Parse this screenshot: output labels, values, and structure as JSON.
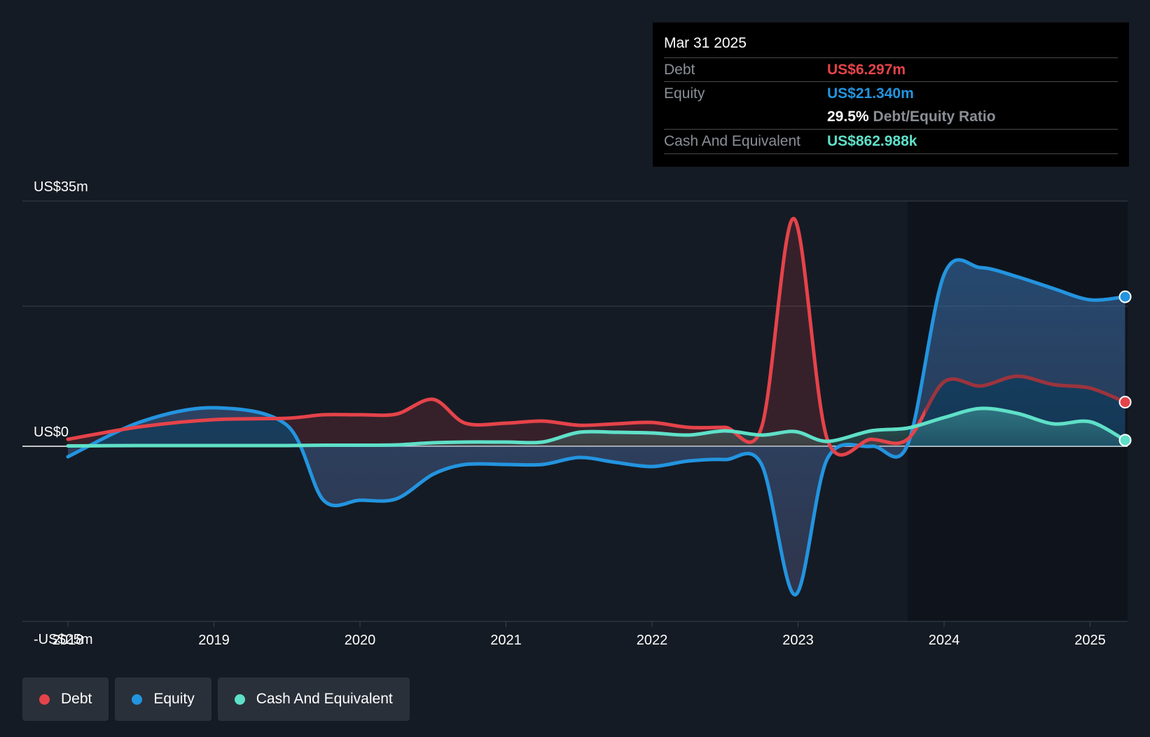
{
  "colors": {
    "debt": "#e5434a",
    "equity": "#2394df",
    "cash": "#5fe0c8",
    "background": "#151b24"
  },
  "tooltip": {
    "date": "Mar 31 2025",
    "rows": {
      "debt_label": "Debt",
      "debt_value": "US$6.297m",
      "equity_label": "Equity",
      "equity_value": "US$21.340m",
      "ratio_value": "29.5%",
      "ratio_label": "Debt/Equity Ratio",
      "cash_label": "Cash And Equivalent",
      "cash_value": "US$862.988k"
    }
  },
  "legend": {
    "items": [
      {
        "label": "Debt",
        "color": "#e5434a"
      },
      {
        "label": "Equity",
        "color": "#2394df"
      },
      {
        "label": "Cash And Equivalent",
        "color": "#5fe0c8"
      }
    ]
  },
  "chart_data": {
    "type": "line",
    "title": "",
    "xlabel": "",
    "ylabel": "",
    "xlim": [
      2017.7,
      2025.25
    ],
    "ylim": [
      -25,
      35
    ],
    "y_tick_labels": [
      {
        "value": 35,
        "label": "US$35m"
      },
      {
        "value": 0,
        "label": "US$0"
      },
      {
        "value": -25,
        "label": "-US$25m"
      }
    ],
    "gridlines": [
      35,
      20,
      0,
      -25
    ],
    "x_tick_labels": [
      {
        "value": 2018,
        "label": "2018"
      },
      {
        "value": 2019,
        "label": "2019"
      },
      {
        "value": 2020,
        "label": "2020"
      },
      {
        "value": 2021,
        "label": "2021"
      },
      {
        "value": 2022,
        "label": "2022"
      },
      {
        "value": 2023,
        "label": "2023"
      },
      {
        "value": 2024,
        "label": "2024"
      },
      {
        "value": 2025,
        "label": "2025"
      }
    ],
    "highlight_start": 2023.75,
    "series": [
      {
        "name": "Debt",
        "key": "debt",
        "x": [
          2018.0,
          2018.5,
          2019.0,
          2019.5,
          2019.75,
          2020.0,
          2020.25,
          2020.5,
          2020.72,
          2021.0,
          2021.25,
          2021.5,
          2021.75,
          2022.0,
          2022.25,
          2022.5,
          2022.75,
          2022.97,
          2023.2,
          2023.5,
          2023.75,
          2024.0,
          2024.25,
          2024.5,
          2024.75,
          2025.0,
          2025.24
        ],
        "y": [
          1.0,
          2.8,
          3.8,
          4.0,
          4.5,
          4.5,
          4.6,
          6.7,
          3.3,
          3.3,
          3.6,
          3.0,
          3.2,
          3.4,
          2.7,
          2.7,
          2.7,
          32.5,
          1.0,
          1.0,
          1.0,
          9.2,
          8.6,
          10.0,
          8.8,
          8.3,
          6.297
        ]
      },
      {
        "name": "Equity",
        "key": "equity",
        "x": [
          2018.0,
          2018.5,
          2019.0,
          2019.5,
          2019.75,
          2020.0,
          2020.25,
          2020.5,
          2020.72,
          2021.0,
          2021.25,
          2021.5,
          2021.75,
          2022.0,
          2022.25,
          2022.5,
          2022.75,
          2022.98,
          2023.2,
          2023.5,
          2023.75,
          2024.0,
          2024.25,
          2024.5,
          2024.75,
          2025.0,
          2025.24
        ],
        "y": [
          -1.5,
          3.5,
          5.5,
          3.0,
          -7.7,
          -7.7,
          -7.5,
          -4.0,
          -2.6,
          -2.6,
          -2.6,
          -1.6,
          -2.3,
          -2.9,
          -2.1,
          -1.9,
          -2.6,
          -21.2,
          -1.8,
          0.0,
          0.2,
          24.5,
          25.5,
          24.2,
          22.5,
          20.9,
          21.34
        ]
      },
      {
        "name": "Cash And Equivalent",
        "key": "cash",
        "x": [
          2018.0,
          2018.5,
          2019.0,
          2019.5,
          2019.75,
          2020.0,
          2020.25,
          2020.5,
          2020.72,
          2021.0,
          2021.25,
          2021.5,
          2021.75,
          2022.0,
          2022.25,
          2022.5,
          2022.75,
          2022.98,
          2023.2,
          2023.5,
          2023.75,
          2024.0,
          2024.25,
          2024.5,
          2024.75,
          2025.0,
          2025.24
        ],
        "y": [
          0.05,
          0.1,
          0.1,
          0.1,
          0.15,
          0.15,
          0.2,
          0.5,
          0.6,
          0.6,
          0.6,
          2.0,
          2.0,
          1.9,
          1.6,
          2.2,
          1.6,
          2.1,
          0.7,
          2.2,
          2.6,
          4.1,
          5.4,
          4.7,
          3.2,
          3.5,
          0.863
        ]
      }
    ]
  }
}
